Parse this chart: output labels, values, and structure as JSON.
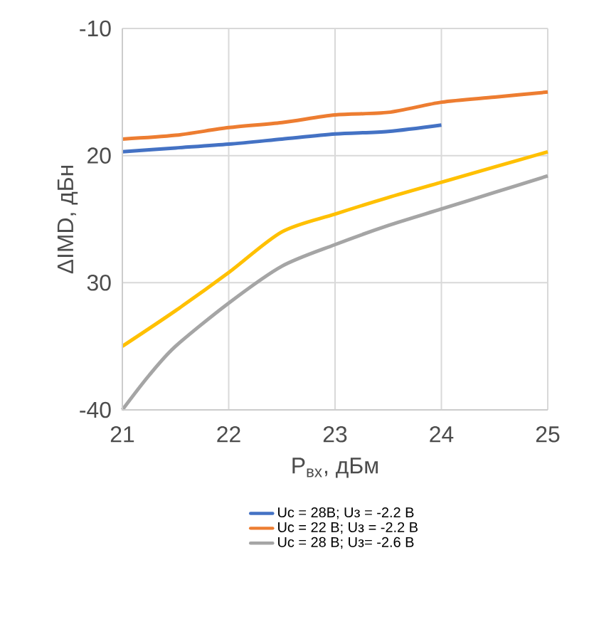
{
  "chart_data": {
    "type": "line",
    "xlabel": "P$_{вх}$, дБм",
    "ylabel": "ΔIMD, дБн",
    "xlim": [
      21,
      25
    ],
    "ylim": [
      -40,
      -10
    ],
    "xticks": [
      21,
      22,
      23,
      24,
      25
    ],
    "yticks": [
      {
        "value": -40,
        "label": "-40"
      },
      {
        "value": -30,
        "label": "30"
      },
      {
        "value": -20,
        "label": "20"
      },
      {
        "value": -10,
        "label": "-10"
      }
    ],
    "grid": true,
    "legend": "bottom",
    "marker": "none",
    "line_style": "solid",
    "series": [
      {
        "name": "Uс = 28В; Uз = -2.2 В",
        "color": "#4472c4",
        "x": [
          21,
          21.5,
          22,
          22.5,
          23,
          23.5,
          24
        ],
        "values": [
          -19.7,
          -19.4,
          -19.1,
          -18.7,
          -18.3,
          -18.1,
          -17.6
        ]
      },
      {
        "name": "Uс = 22 В; Uз = -2.2 В",
        "color": "#ed7d31",
        "x": [
          21,
          21.5,
          22,
          22.5,
          23,
          23.5,
          24,
          24.5,
          25
        ],
        "values": [
          -18.7,
          -18.4,
          -17.8,
          -17.4,
          -16.8,
          -16.6,
          -15.8,
          -15.4,
          -15.0
        ]
      },
      {
        "color": "#ffc000",
        "x": [
          21,
          21.5,
          22,
          22.5,
          23,
          23.5,
          24,
          24.5,
          25
        ],
        "values": [
          -35.0,
          -32.2,
          -29.2,
          -26.0,
          -24.6,
          -23.3,
          -22.1,
          -20.9,
          -19.7
        ]
      },
      {
        "name": "Uс = 28 В; Uз= -2.6 В",
        "color": "#a5a5a5",
        "x": [
          21,
          21.25,
          21.5,
          22,
          22.5,
          23,
          23.5,
          24,
          24.5,
          25
        ],
        "values": [
          -40,
          -37.3,
          -35.0,
          -31.6,
          -28.7,
          -27.0,
          -25.5,
          -24.2,
          -22.9,
          -21.6
        ]
      }
    ]
  }
}
